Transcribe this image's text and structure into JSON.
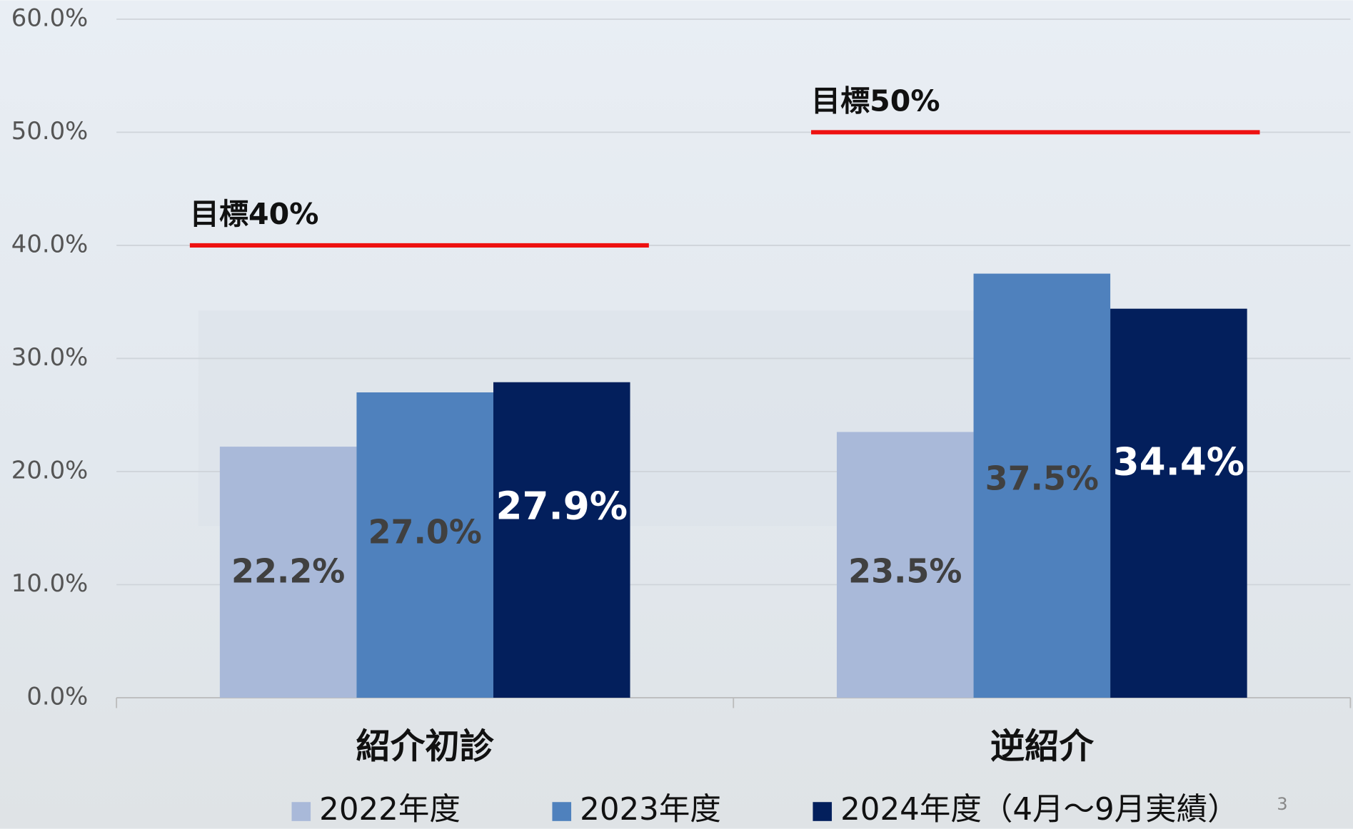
{
  "chart_data": {
    "type": "bar",
    "categories": [
      "紹介初診",
      "逆紹介"
    ],
    "series": [
      {
        "name": "2022年度",
        "color": "#a9b9d9",
        "label_color": "#404040",
        "values": [
          22.2,
          23.5
        ],
        "value_labels": [
          "22.2%",
          "23.5%"
        ]
      },
      {
        "name": "2023年度",
        "color": "#4f81bd",
        "label_color": "#404040",
        "values": [
          27.0,
          37.5
        ],
        "value_labels": [
          "27.0%",
          "37.5%"
        ]
      },
      {
        "name": "2024年度（4月～9月実績）",
        "color": "#031f5c",
        "label_color": "#ffffff",
        "values": [
          27.9,
          34.4
        ],
        "value_labels": [
          "27.9%",
          "34.4%"
        ]
      }
    ],
    "ylim": [
      0,
      60
    ],
    "yticks": [
      {
        "value": 0,
        "label": "0.0%"
      },
      {
        "value": 10,
        "label": "10.0%"
      },
      {
        "value": 20,
        "label": "20.0%"
      },
      {
        "value": 30,
        "label": "30.0%"
      },
      {
        "value": 40,
        "label": "40.0%"
      },
      {
        "value": 50,
        "label": "50.0%"
      },
      {
        "value": 60,
        "label": "60.0%"
      }
    ],
    "grid": true,
    "targets": [
      {
        "label": "目標40%",
        "value": 40,
        "color": "#ee1111"
      },
      {
        "label": "目標50%",
        "value": 50,
        "color": "#ee1111"
      }
    ]
  },
  "page_number": "3"
}
